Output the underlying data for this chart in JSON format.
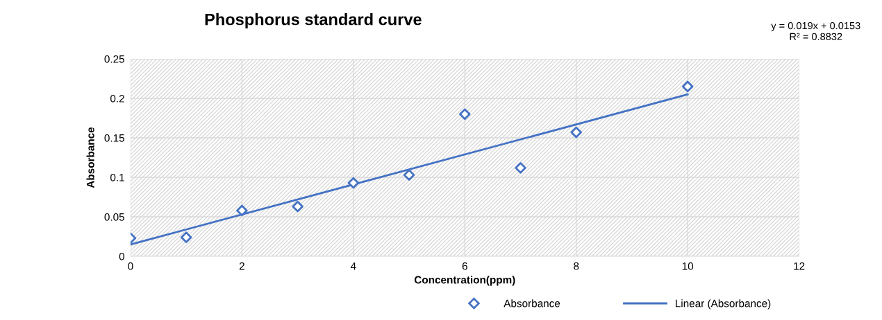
{
  "chart_data": {
    "type": "scatter",
    "title": "Phosphorus standard curve",
    "xlabel": "Concentration(ppm)",
    "ylabel": "Absorbance",
    "annotations": [
      "y = 0.019x + 0.0153\nR² = 0.8832"
    ],
    "series": [
      {
        "name": "Absorbance",
        "color": "#4472c4",
        "marker": "diamond",
        "x": [
          0,
          1,
          2,
          3,
          4,
          5,
          6,
          7,
          8,
          10
        ],
        "values": [
          0.023,
          0.024,
          0.058,
          0.063,
          0.093,
          0.103,
          0.18,
          0.112,
          0.157,
          0.215
        ]
      },
      {
        "name": "Linear (Absorbance)",
        "type": "line",
        "color": "#4472c4",
        "line_style": "solid",
        "x": [
          0,
          10
        ],
        "values": [
          0.015,
          0.205
        ]
      }
    ],
    "xlim": [
      0,
      12
    ],
    "xticks": [
      0,
      2,
      4,
      6,
      8,
      10,
      12
    ],
    "ylim": [
      0,
      0.25
    ],
    "yticks": [
      0,
      0.05,
      0.1,
      0.15,
      0.2,
      0.25
    ],
    "grid": true,
    "legend": "bottom"
  }
}
